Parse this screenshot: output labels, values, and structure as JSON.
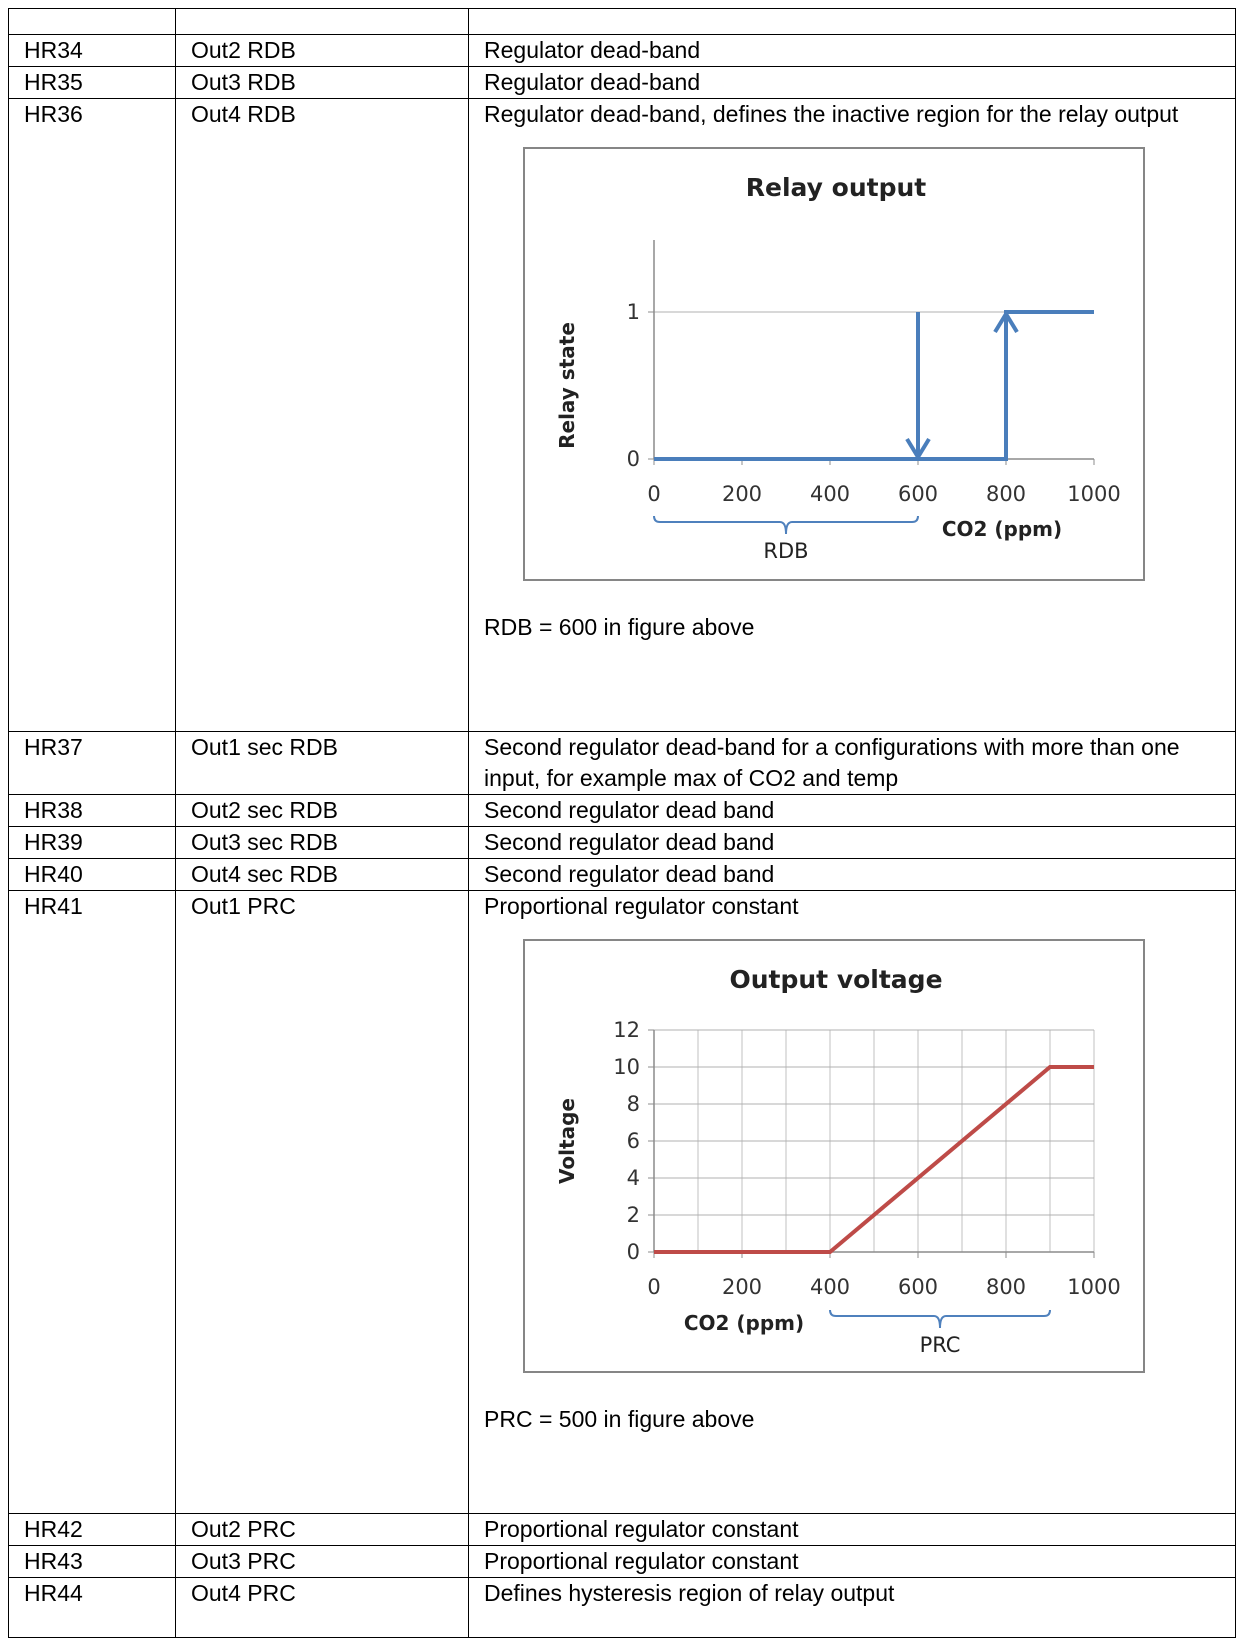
{
  "table": {
    "header": [
      "",
      "",
      ""
    ],
    "rows": [
      {
        "reg": "HR34",
        "name": "Out2 RDB",
        "desc": "Regulator dead-band"
      },
      {
        "reg": "HR35",
        "name": "Out3 RDB",
        "desc": "Regulator dead-band"
      },
      {
        "reg": "HR36",
        "name": "Out4 RDB",
        "desc": "Regulator dead-band, defines the inactive region for the relay output",
        "note": "RDB = 600 in figure above"
      },
      {
        "reg": "HR37",
        "name": "Out1 sec RDB",
        "desc": "Second regulator dead-band for a configurations with more than one input, for example max of CO2 and temp"
      },
      {
        "reg": "HR38",
        "name": "Out2 sec RDB",
        "desc": "Second regulator dead band"
      },
      {
        "reg": "HR39",
        "name": "Out3 sec RDB",
        "desc": "Second regulator dead band"
      },
      {
        "reg": "HR40",
        "name": "Out4 sec RDB",
        "desc": "Second regulator dead band"
      },
      {
        "reg": "HR41",
        "name": "Out1 PRC",
        "desc": "Proportional regulator constant",
        "note": "PRC = 500 in figure above"
      },
      {
        "reg": "HR42",
        "name": "Out2 PRC",
        "desc": "Proportional regulator constant"
      },
      {
        "reg": "HR43",
        "name": "Out3 PRC",
        "desc": "Proportional regulator constant"
      },
      {
        "reg": "HR44",
        "name": "Out4 PRC",
        "desc": "Defines hysteresis region of relay output"
      }
    ]
  },
  "chart_data": [
    {
      "type": "line",
      "title": "Relay output",
      "xlabel": "CO2 (ppm)",
      "ylabel": "Relay state",
      "xlim": [
        0,
        1000
      ],
      "ylim": [
        0,
        1
      ],
      "x_ticks": [
        "0",
        "200",
        "400",
        "600",
        "800",
        "1000"
      ],
      "y_ticks": [
        "0",
        "1"
      ],
      "grid": "horizontal",
      "series": [
        {
          "x": [
            0,
            800,
            800,
            1000
          ],
          "y": [
            0,
            0,
            1,
            1
          ]
        },
        {
          "x": [
            600,
            600
          ],
          "y": [
            1,
            0
          ]
        }
      ],
      "annotations": [
        {
          "text": "RDB",
          "from": 0,
          "to": 600
        }
      ],
      "line_color": "#4a7ebb"
    },
    {
      "type": "line",
      "title": "Output voltage",
      "xlabel": "CO2 (ppm)",
      "ylabel": "Voltage",
      "xlim": [
        0,
        1000
      ],
      "ylim": [
        0,
        12
      ],
      "x_ticks": [
        "0",
        "200",
        "400",
        "600",
        "800",
        "1000"
      ],
      "y_ticks": [
        "0",
        "2",
        "4",
        "6",
        "8",
        "10",
        "12"
      ],
      "grid": "both",
      "series": [
        {
          "x": [
            0,
            400,
            900,
            1000
          ],
          "y": [
            0,
            0,
            10,
            10
          ]
        }
      ],
      "annotations": [
        {
          "text": "PRC",
          "from": 400,
          "to": 900
        }
      ],
      "line_color": "#be4b48"
    }
  ]
}
